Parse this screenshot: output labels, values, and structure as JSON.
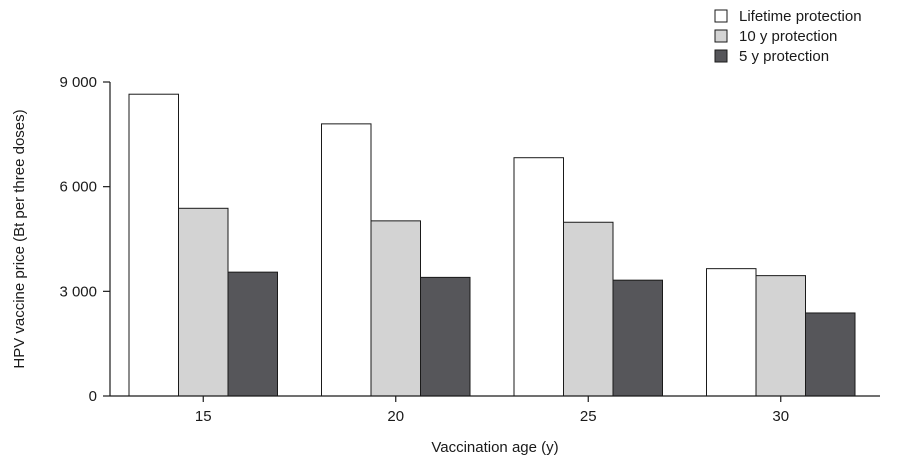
{
  "chart_data": {
    "type": "bar",
    "title": "",
    "xlabel": "Vaccination age (y)",
    "ylabel": "HPV vaccine price (Bt per three doses)",
    "categories": [
      "15",
      "20",
      "25",
      "30"
    ],
    "ylim": [
      0,
      9000
    ],
    "yticks": [
      0,
      3000,
      6000,
      9000
    ],
    "ytick_labels": [
      "0",
      "3 000",
      "6 000",
      "9 000"
    ],
    "grid": false,
    "legend_position": "top-right",
    "series": [
      {
        "name": "Lifetime protection",
        "color": "#ffffff",
        "values": [
          8650,
          7800,
          6830,
          3650
        ]
      },
      {
        "name": "10 y protection",
        "color": "#d3d3d3",
        "values": [
          5380,
          5020,
          4980,
          3450
        ]
      },
      {
        "name": "5 y protection",
        "color": "#56565a",
        "values": [
          3550,
          3400,
          3320,
          2380
        ]
      }
    ]
  }
}
